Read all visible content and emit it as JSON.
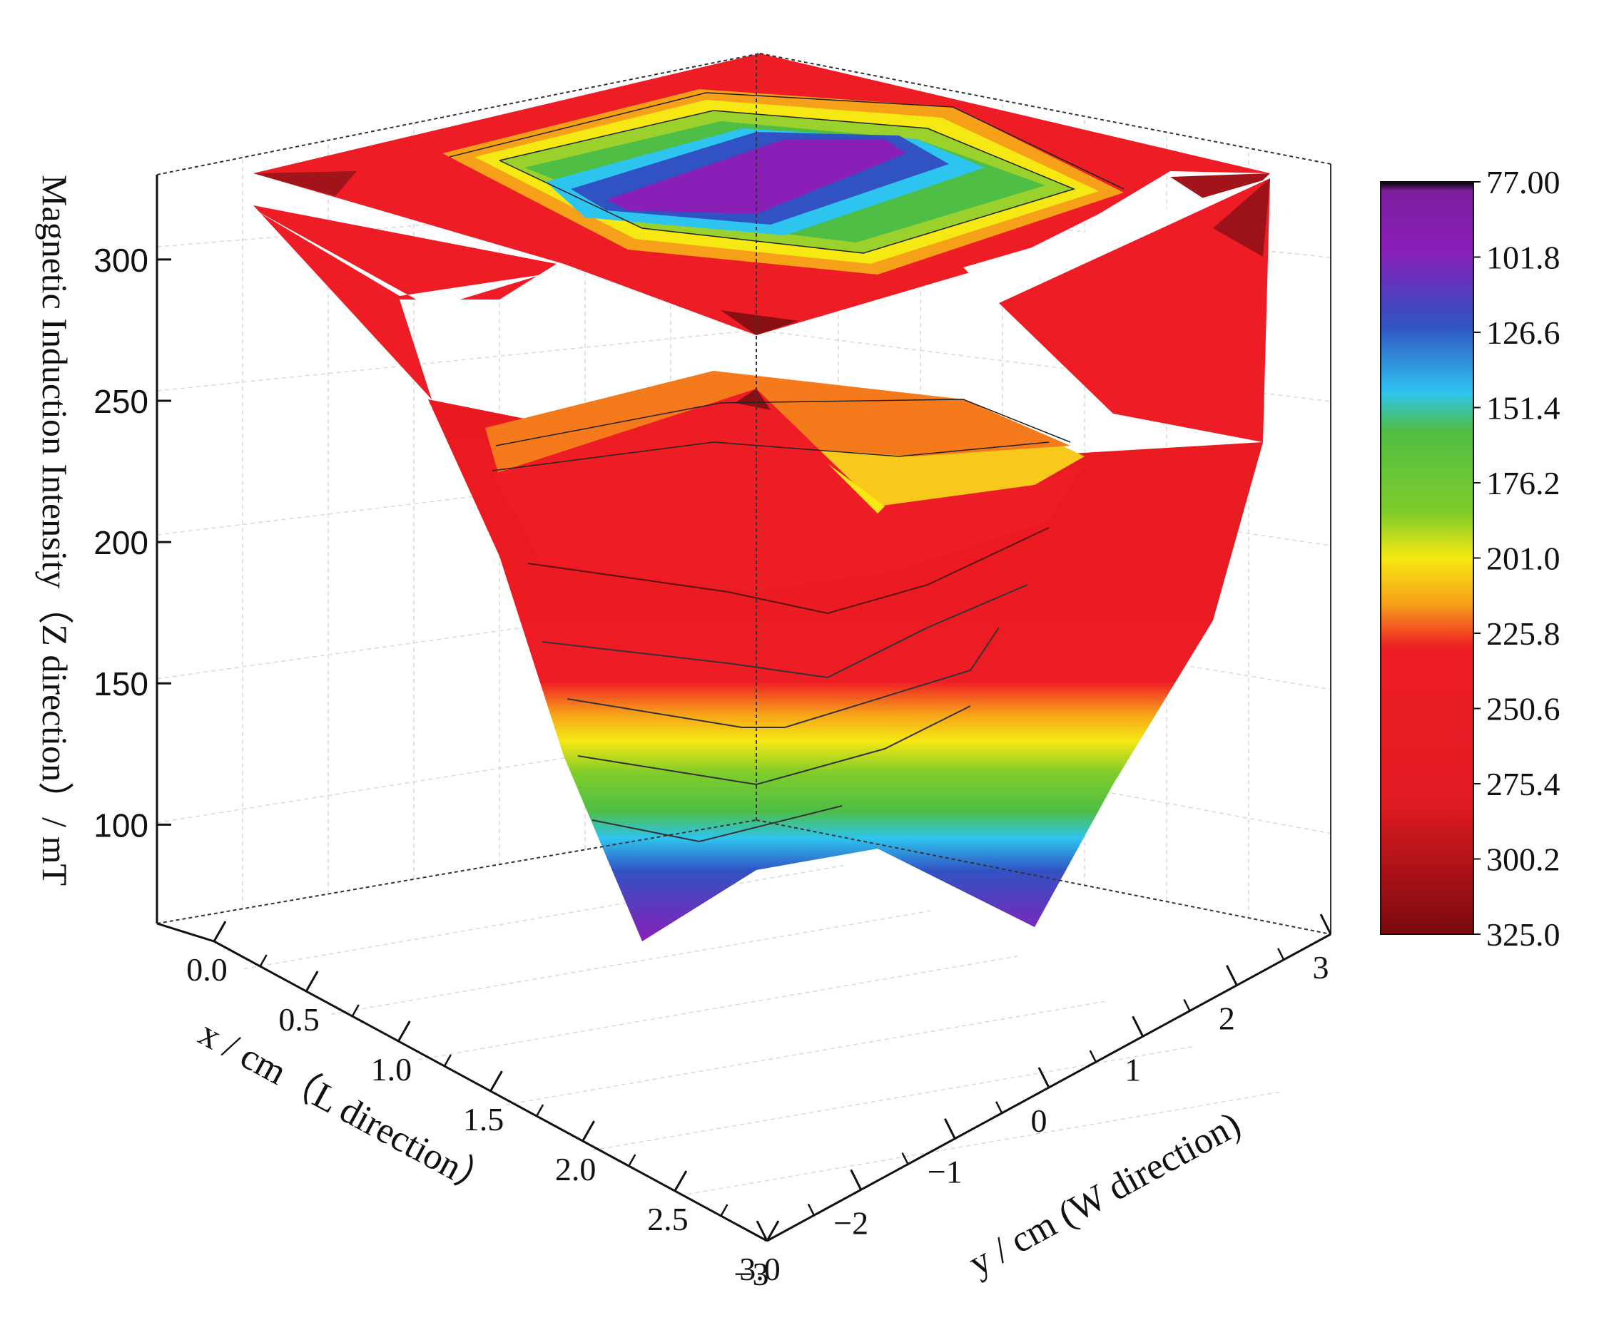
{
  "chart_data": {
    "type": "surface3d",
    "title": "",
    "zlabel": "Magnetic Induction Intensity（Z direction）/ mT",
    "xlabel": "x / cm（L direction）",
    "ylabel": "y / cm (W direction)",
    "x_ticks": [
      "0.0",
      "0.5",
      "1.0",
      "1.5",
      "2.0",
      "2.5",
      "3.0"
    ],
    "y_ticks": [
      "−3",
      "−2",
      "−1",
      "0",
      "1",
      "2",
      "3"
    ],
    "z_ticks": [
      "100",
      "150",
      "200",
      "250",
      "300"
    ],
    "xlim": [
      0,
      3
    ],
    "ylim": [
      -3,
      3
    ],
    "zlim": [
      65,
      330
    ],
    "colorbar": {
      "labels": [
        "77.00",
        "101.8",
        "126.6",
        "151.4",
        "176.2",
        "201.0",
        "225.8",
        "250.6",
        "275.4",
        "300.2",
        "325.0"
      ],
      "colors": [
        "#000000",
        "#8a1fb8",
        "#3152c2",
        "#2ec4f0",
        "#4fbe45",
        "#7fcc2a",
        "#f6e812",
        "#f7a11a",
        "#ee1c24",
        "#e21b22",
        "#7a0a0e"
      ]
    },
    "grid": true,
    "surface_shape": "funnel: ~300–325 mT at the rim (x=0 and x=3, |y|=3), dropping to ~77 mT at the center bottom",
    "x_values": [
      0.0,
      0.5,
      1.0,
      1.5,
      2.0,
      2.5,
      3.0
    ],
    "y_values": [
      -3,
      -2,
      -1,
      0,
      1,
      2,
      3
    ],
    "z_values": [
      [
        320,
        310,
        305,
        300,
        305,
        310,
        320
      ],
      [
        300,
        250,
        220,
        210,
        220,
        250,
        300
      ],
      [
        290,
        220,
        160,
        140,
        160,
        220,
        290
      ],
      [
        280,
        200,
        120,
        77,
        120,
        200,
        280
      ],
      [
        290,
        220,
        160,
        140,
        160,
        220,
        290
      ],
      [
        300,
        250,
        220,
        210,
        220,
        250,
        300
      ],
      [
        320,
        310,
        305,
        300,
        305,
        310,
        320
      ]
    ]
  }
}
